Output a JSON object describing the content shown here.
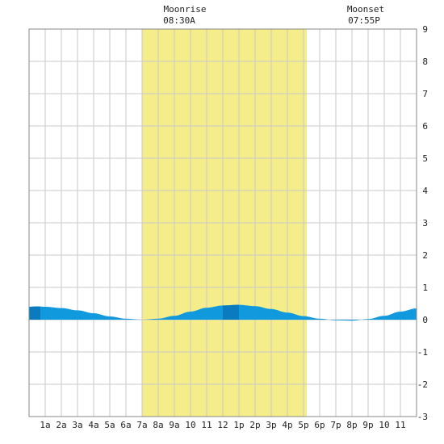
{
  "header": {
    "moonrise_title": "Moonrise",
    "moonrise_time": "08:30A",
    "moonset_title": "Moonset",
    "moonset_time": "07:55P"
  },
  "colors": {
    "background": "#ffffff",
    "grid": "#c8c8c8",
    "border": "#888888",
    "daylight": "#f5ec8a",
    "tide_night": "#0a7bbf",
    "tide_day": "#1199dd"
  },
  "chart_data": {
    "type": "area",
    "title": "",
    "xlabel": "",
    "ylabel": "",
    "x_range_hours": [
      0,
      24
    ],
    "ylim": [
      -3,
      9
    ],
    "y_ticks": [
      -3,
      -2,
      -1,
      0,
      1,
      2,
      3,
      4,
      5,
      6,
      7,
      8,
      9
    ],
    "x_tick_hours": [
      1,
      2,
      3,
      4,
      5,
      6,
      7,
      8,
      9,
      10,
      11,
      12,
      13,
      14,
      15,
      16,
      17,
      18,
      19,
      20,
      21,
      22,
      23
    ],
    "x_tick_labels": [
      "1a",
      "2a",
      "3a",
      "4a",
      "5a",
      "6a",
      "7a",
      "8a",
      "9a",
      "10",
      "11",
      "12",
      "1p",
      "2p",
      "3p",
      "4p",
      "5p",
      "6p",
      "7p",
      "8p",
      "9p",
      "10",
      "11"
    ],
    "grid": true,
    "daylight_band_hours": [
      7.0,
      17.2
    ],
    "moonrise_hour": 8.5,
    "moonset_hour": 19.92,
    "tide_series": {
      "name": "",
      "x_hours": [
        0,
        0.5,
        1,
        2,
        3,
        4,
        5,
        6,
        7,
        8,
        9,
        10,
        11,
        12,
        13,
        14,
        15,
        16,
        17,
        18,
        19,
        20,
        21,
        22,
        23,
        24
      ],
      "heights": [
        0.4,
        0.41,
        0.4,
        0.36,
        0.29,
        0.2,
        0.1,
        0.03,
        0.0,
        0.03,
        0.12,
        0.25,
        0.37,
        0.44,
        0.46,
        0.42,
        0.33,
        0.22,
        0.11,
        0.03,
        -0.02,
        -0.03,
        0.02,
        0.12,
        0.25,
        0.35
      ]
    },
    "dark_tide_segments_hours": [
      [
        0,
        0.7
      ],
      [
        12,
        13
      ]
    ]
  }
}
